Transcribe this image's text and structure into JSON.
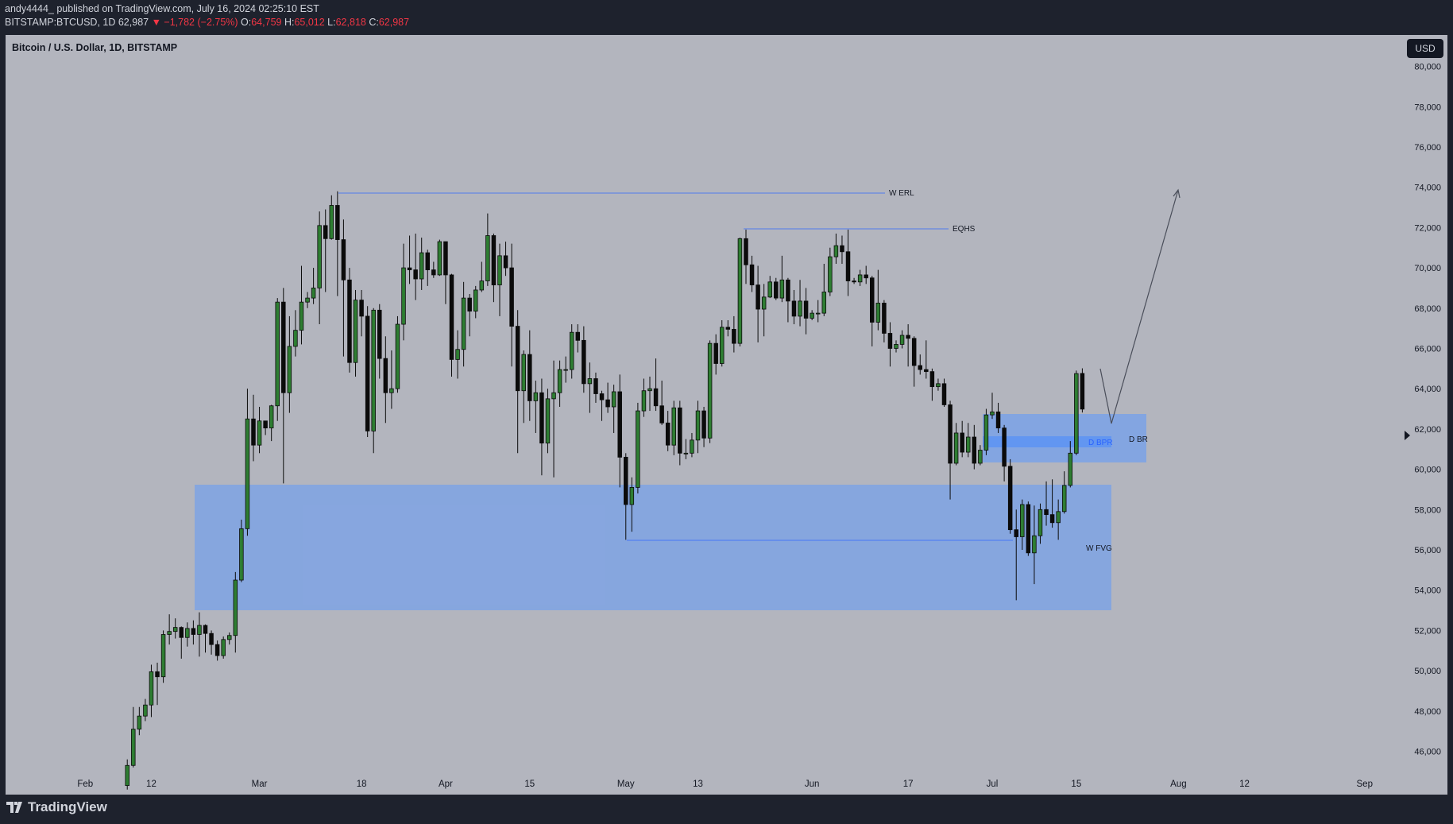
{
  "header": {
    "author": "andy4444_ published on TradingView.com, July 16, 2024 02:25:10 EST",
    "symbol": "BITSTAMP:BTCUSD, 1D",
    "last": "62,987",
    "change": "▼ −1,782 (−2.75%)",
    "ohlc": [
      {
        "label": "O:",
        "value": "64,759"
      },
      {
        "label": "H:",
        "value": "65,012"
      },
      {
        "label": "L:",
        "value": "62,818"
      },
      {
        "label": "C:",
        "value": "62,987"
      }
    ]
  },
  "currency_button": "USD",
  "footer": "TradingView",
  "chart_data": {
    "type": "candlestick",
    "title": "Bitcoin / U.S. Dollar, 1D, BITSTAMP",
    "annotations": [
      "W ERL",
      "EQHS",
      "W FVG",
      "D BR",
      "D BPR"
    ],
    "up_color": "#2e7d32",
    "down_color": "#0b0b0b",
    "x": [
      "02-08",
      "02-09",
      "02-10",
      "02-11",
      "02-12",
      "02-13",
      "02-14",
      "02-15",
      "02-16",
      "02-17",
      "02-18",
      "02-19",
      "02-20",
      "02-21",
      "02-22",
      "02-23",
      "02-24",
      "02-25",
      "02-26",
      "02-27",
      "02-28",
      "02-29",
      "03-01",
      "03-02",
      "03-03",
      "03-04",
      "03-05",
      "03-06",
      "03-07",
      "03-08",
      "03-09",
      "03-10",
      "03-11",
      "03-12",
      "03-13",
      "03-14",
      "03-15",
      "03-16",
      "03-17",
      "03-18",
      "03-19",
      "03-20",
      "03-21",
      "03-22",
      "03-23",
      "03-24",
      "03-25",
      "03-26",
      "03-27",
      "03-28",
      "03-29",
      "03-30",
      "03-31",
      "04-01",
      "04-02",
      "04-03",
      "04-04",
      "04-05",
      "04-06",
      "04-07",
      "04-08",
      "04-09",
      "04-10",
      "04-11",
      "04-12",
      "04-13",
      "04-14",
      "04-15",
      "04-16",
      "04-17",
      "04-18",
      "04-19",
      "04-20",
      "04-21",
      "04-22",
      "04-23",
      "04-24",
      "04-25",
      "04-26",
      "04-27",
      "04-28",
      "04-29",
      "04-30",
      "05-01",
      "05-02",
      "05-03",
      "05-04",
      "05-05",
      "05-06",
      "05-07",
      "05-08",
      "05-09",
      "05-10",
      "05-11",
      "05-12",
      "05-13",
      "05-14",
      "05-15",
      "05-16",
      "05-17",
      "05-18",
      "05-19",
      "05-20",
      "05-21",
      "05-22",
      "05-23",
      "05-24",
      "05-25",
      "05-26",
      "05-27",
      "05-28",
      "05-29",
      "05-30",
      "05-31",
      "06-01",
      "06-02",
      "06-03",
      "06-04",
      "06-05",
      "06-06",
      "06-07",
      "06-08",
      "06-09",
      "06-10",
      "06-11",
      "06-12",
      "06-13",
      "06-14",
      "06-15",
      "06-16",
      "06-17",
      "06-18",
      "06-19",
      "06-20",
      "06-21",
      "06-22",
      "06-23",
      "06-24",
      "06-25",
      "06-26",
      "06-27",
      "06-28",
      "06-29",
      "06-30",
      "07-01",
      "07-02",
      "07-03",
      "07-04",
      "07-05",
      "07-06",
      "07-07",
      "07-08",
      "07-09",
      "07-10",
      "07-11",
      "07-12",
      "07-13",
      "07-14",
      "07-15",
      "07-16"
    ],
    "open": [
      44300,
      45300,
      47100,
      47750,
      48300,
      49950,
      49700,
      51800,
      51950,
      52150,
      51650,
      52100,
      51800,
      52250,
      51850,
      51300,
      50750,
      51550,
      51750,
      54500,
      57050,
      62500,
      61200,
      62400,
      62050,
      63150,
      68300,
      63800,
      66100,
      66900,
      68300,
      68500,
      69000,
      72100,
      71450,
      73100,
      71400,
      69400,
      65300,
      68400,
      67600,
      61900,
      67900,
      65500,
      63800,
      64000,
      67200,
      70000,
      69900,
      69450,
      70750,
      69900,
      69650,
      71300,
      69650,
      65450,
      65950,
      68500,
      67850,
      68900,
      69350,
      71600,
      69150,
      70600,
      70000,
      67100,
      63900,
      65700,
      63400,
      63800,
      61300,
      63500,
      63800,
      64950,
      64950,
      66800,
      66400,
      64250,
      64500,
      63750,
      63450,
      63100,
      63850,
      60600,
      58250,
      59100,
      62900,
      63900,
      64000,
      63150,
      62300,
      61200,
      63050,
      60800,
      60800,
      61450,
      62900,
      61550,
      66250,
      65250,
      67050,
      66950,
      66250,
      71450,
      70150,
      69150,
      67950,
      68550,
      69300,
      68500,
      69400,
      68350,
      67600,
      68350,
      67500,
      67750,
      67750,
      68800,
      70550,
      71100,
      70800,
      69350,
      69300,
      69650,
      69500,
      67300,
      68250,
      66750,
      66000,
      66200,
      66650,
      66500,
      65150,
      64950,
      64850,
      64100,
      64250,
      63200,
      60300,
      61800,
      60850,
      61600,
      60300,
      60950,
      62700,
      62850,
      62050,
      60150,
      57000,
      56650,
      58250,
      55850,
      56700,
      58000,
      57750,
      57350,
      57900,
      59200,
      60800,
      64759
    ],
    "high": [
      45600,
      48200,
      48200,
      48600,
      50300,
      50400,
      52000,
      52800,
      52600,
      52200,
      52400,
      52500,
      52900,
      52300,
      52000,
      51500,
      51700,
      51900,
      54900,
      57500,
      64000,
      63700,
      63100,
      62400,
      63200,
      68500,
      69000,
      67600,
      67900,
      70100,
      68800,
      70000,
      72800,
      72900,
      73600,
      73800,
      72400,
      70000,
      68900,
      68900,
      68100,
      68000,
      68200,
      66600,
      65900,
      67600,
      71200,
      71600,
      71700,
      71500,
      70900,
      70300,
      71400,
      71300,
      69700,
      66900,
      69300,
      68700,
      69100,
      70300,
      72700,
      71700,
      71200,
      71300,
      71200,
      67900,
      65900,
      66900,
      64400,
      64500,
      64000,
      65400,
      65400,
      65600,
      67200,
      67200,
      67100,
      65300,
      64800,
      63900,
      64300,
      64200,
      64700,
      60800,
      59600,
      63300,
      64500,
      64600,
      65500,
      64400,
      62900,
      63400,
      63400,
      61500,
      61800,
      63400,
      63100,
      66400,
      66700,
      67400,
      67400,
      67600,
      71500,
      71900,
      70600,
      70100,
      69200,
      69600,
      69500,
      70600,
      69500,
      68900,
      69400,
      69000,
      67900,
      68400,
      70200,
      71000,
      71700,
      71600,
      71900,
      69500,
      69900,
      70100,
      69600,
      69900,
      68400,
      67300,
      66400,
      66900,
      67200,
      66600,
      65700,
      66400,
      65000,
      64500,
      64500,
      63400,
      62300,
      62400,
      62300,
      62200,
      61200,
      63000,
      63800,
      63300,
      62200,
      60500,
      58000,
      58500,
      58400,
      58200,
      58300,
      59400,
      59500,
      58500,
      59900,
      61400,
      64900,
      65012
    ],
    "low": [
      44100,
      45200,
      46800,
      47500,
      47700,
      48300,
      49400,
      51300,
      51600,
      50600,
      51200,
      51300,
      50700,
      50900,
      50800,
      50500,
      50600,
      51300,
      50900,
      54400,
      56700,
      60400,
      60800,
      61700,
      61400,
      62400,
      59300,
      62800,
      65600,
      66200,
      68000,
      68200,
      67200,
      68800,
      71400,
      68600,
      65600,
      64800,
      64600,
      66600,
      61600,
      60800,
      64500,
      62300,
      63000,
      63800,
      66400,
      69200,
      68400,
      68900,
      69100,
      69500,
      69600,
      68200,
      64600,
      64500,
      65100,
      66600,
      67500,
      68800,
      69100,
      68300,
      67600,
      69600,
      65100,
      60800,
      62300,
      62400,
      61800,
      59700,
      60800,
      59600,
      63100,
      64300,
      64500,
      65800,
      63800,
      62800,
      63300,
      62400,
      62800,
      61800,
      59100,
      56500,
      56900,
      58800,
      62600,
      62900,
      62900,
      62200,
      60900,
      60700,
      60200,
      60500,
      60600,
      60800,
      61100,
      61300,
      64700,
      65100,
      66600,
      65800,
      66100,
      69200,
      68800,
      66300,
      66600,
      68500,
      68400,
      68300,
      67300,
      67200,
      67100,
      66700,
      67400,
      67300,
      67600,
      68600,
      70200,
      70200,
      68600,
      69200,
      69100,
      69200,
      66100,
      66900,
      66300,
      65100,
      65800,
      66000,
      65100,
      64100,
      64700,
      64500,
      63400,
      63900,
      63100,
      58500,
      60200,
      60600,
      60600,
      60000,
      60200,
      60700,
      62500,
      61800,
      59400,
      56800,
      53500,
      56000,
      55700,
      54300,
      56300,
      57200,
      57100,
      56500,
      57800,
      59100,
      60700,
      62818
    ],
    "close": [
      45300,
      47100,
      47750,
      48300,
      49950,
      49700,
      51800,
      51950,
      52150,
      51650,
      52100,
      51800,
      52250,
      51850,
      51300,
      50750,
      51550,
      51750,
      54500,
      57050,
      62500,
      61200,
      62400,
      62050,
      63150,
      68300,
      63800,
      66100,
      66900,
      68300,
      68500,
      69000,
      72100,
      71450,
      73100,
      71400,
      69400,
      65300,
      68400,
      67600,
      61900,
      67900,
      65500,
      63800,
      64000,
      67200,
      70000,
      69900,
      69450,
      70750,
      69900,
      69650,
      71300,
      69650,
      65450,
      65950,
      68500,
      67850,
      68900,
      69350,
      71600,
      69150,
      70600,
      70000,
      67100,
      63900,
      65700,
      63400,
      63800,
      61300,
      63500,
      63800,
      64950,
      64950,
      66800,
      66400,
      64250,
      64500,
      63750,
      63450,
      63100,
      63850,
      60600,
      58250,
      59100,
      62900,
      63900,
      64000,
      63150,
      62300,
      61200,
      63050,
      60800,
      60800,
      61450,
      62900,
      61550,
      66250,
      65250,
      67050,
      66950,
      66250,
      71450,
      70150,
      69150,
      67950,
      68550,
      69300,
      68500,
      69400,
      68350,
      67600,
      68350,
      67500,
      67750,
      67750,
      68800,
      70550,
      71100,
      70800,
      69350,
      69300,
      69650,
      69500,
      67300,
      68250,
      66750,
      66000,
      66200,
      66650,
      66500,
      65150,
      64950,
      64850,
      64100,
      64250,
      63200,
      60300,
      61800,
      60850,
      61600,
      60300,
      60950,
      62700,
      62850,
      62050,
      60150,
      57000,
      56650,
      58250,
      55850,
      56700,
      58000,
      57750,
      57350,
      57900,
      59200,
      60800,
      64750,
      62987
    ],
    "xlim": [
      "01-19",
      "09-05"
    ],
    "xticks": [
      {
        "value": "02-01",
        "label": "Feb"
      },
      {
        "value": "02-12",
        "label": "12"
      },
      {
        "value": "03-01",
        "label": "Mar"
      },
      {
        "value": "03-18",
        "label": "18"
      },
      {
        "value": "04-01",
        "label": "Apr"
      },
      {
        "value": "04-15",
        "label": "15"
      },
      {
        "value": "05-01",
        "label": "May"
      },
      {
        "value": "05-13",
        "label": "13"
      },
      {
        "value": "06-01",
        "label": "Jun"
      },
      {
        "value": "06-17",
        "label": "17"
      },
      {
        "value": "07-01",
        "label": "Jul"
      },
      {
        "value": "07-15",
        "label": "15"
      },
      {
        "value": "08-01",
        "label": "Aug"
      },
      {
        "value": "08-12",
        "label": "12"
      },
      {
        "value": "09-01",
        "label": "Sep"
      }
    ],
    "ylim": [
      43930,
      81560
    ],
    "yticks": [
      {
        "value": 46000,
        "label": "46,000"
      },
      {
        "value": 48000,
        "label": "48,000"
      },
      {
        "value": 50000,
        "label": "50,000"
      },
      {
        "value": 52000,
        "label": "52,000"
      },
      {
        "value": 54000,
        "label": "54,000"
      },
      {
        "value": 56000,
        "label": "56,000"
      },
      {
        "value": 58000,
        "label": "58,000"
      },
      {
        "value": 60000,
        "label": "60,000"
      },
      {
        "value": 62000,
        "label": "62,000"
      },
      {
        "value": 64000,
        "label": "64,000"
      },
      {
        "value": 66000,
        "label": "66,000"
      },
      {
        "value": 68000,
        "label": "68,000"
      },
      {
        "value": 70000,
        "label": "70,000"
      },
      {
        "value": 72000,
        "label": "72,000"
      },
      {
        "value": 74000,
        "label": "74,000"
      },
      {
        "value": 76000,
        "label": "76,000"
      },
      {
        "value": 78000,
        "label": "78,000"
      },
      {
        "value": 80000,
        "label": "80,000"
      }
    ],
    "grid": false
  }
}
